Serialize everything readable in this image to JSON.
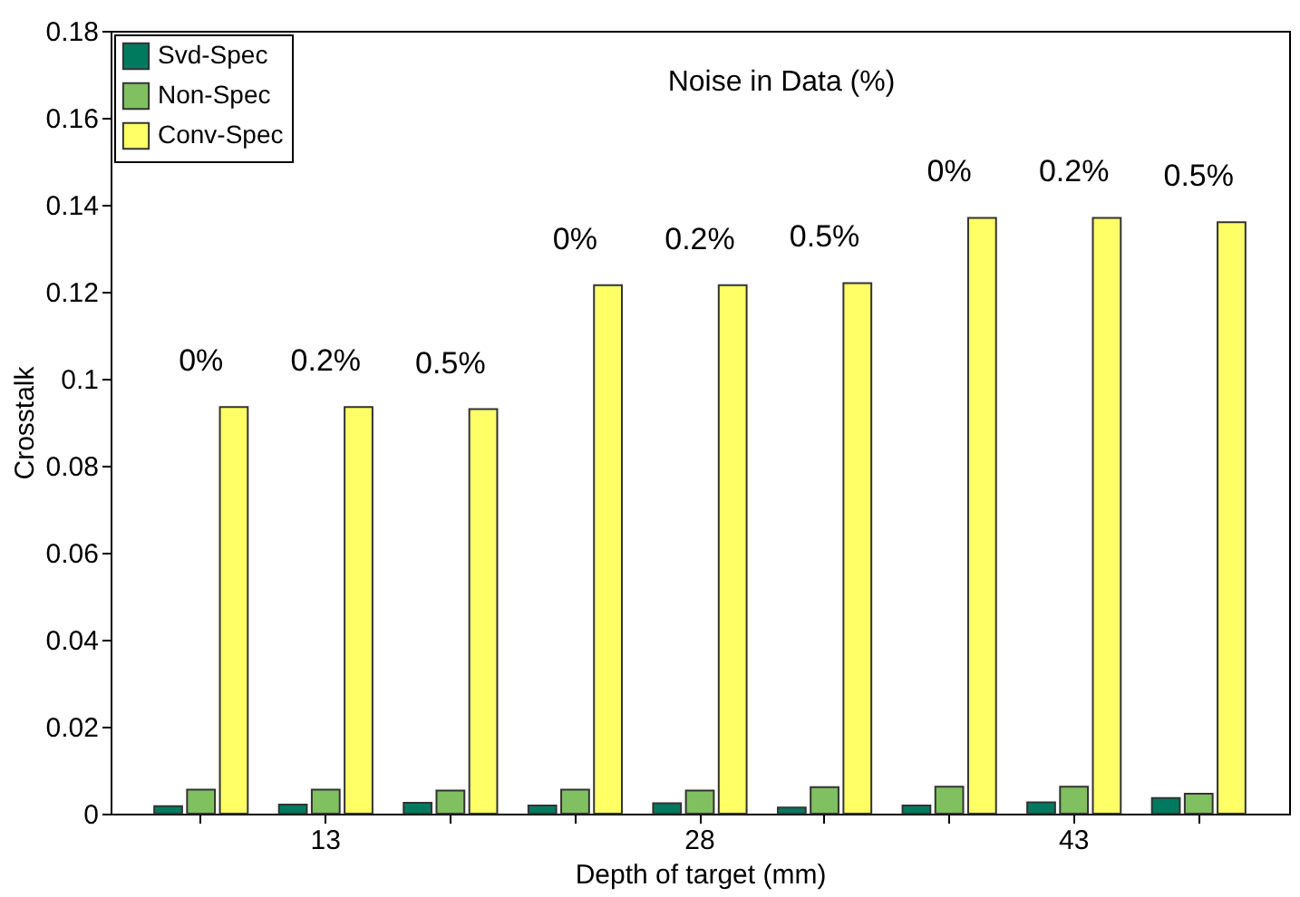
{
  "chart_data": {
    "type": "bar",
    "xlabel": "Depth of target (mm)",
    "ylabel": "Crosstalk",
    "categories": [
      null,
      "13",
      null,
      null,
      "28",
      null,
      null,
      "43",
      null
    ],
    "series": [
      {
        "name": "Svd-Spec",
        "color": "#007a5e",
        "values": [
          0.0017,
          0.0021,
          0.0025,
          0.0019,
          0.0024,
          0.0014,
          0.0019,
          0.0026,
          0.0036
        ]
      },
      {
        "name": "Non-Spec",
        "color": "#80c060",
        "values": [
          0.0055,
          0.0055,
          0.0053,
          0.0055,
          0.0053,
          0.0061,
          0.0062,
          0.0062,
          0.0046
        ]
      },
      {
        "name": "Conv-Spec",
        "color": "#ffff66",
        "values": [
          0.0935,
          0.0935,
          0.093,
          0.1215,
          0.1215,
          0.122,
          0.137,
          0.137,
          0.136
        ]
      }
    ],
    "ylim": [
      0,
      0.18
    ],
    "yticks": [
      0,
      0.02,
      0.04,
      0.06,
      0.08,
      0.1,
      0.12,
      0.14,
      0.16,
      0.18
    ],
    "grid": false,
    "legend": "top left",
    "annotations": [
      "Noise in Data (%)",
      "0%",
      "0.2%",
      "0.5%",
      "0%",
      "0.2%",
      "0.5%",
      "0%",
      "0.2%",
      "0.5%"
    ]
  }
}
